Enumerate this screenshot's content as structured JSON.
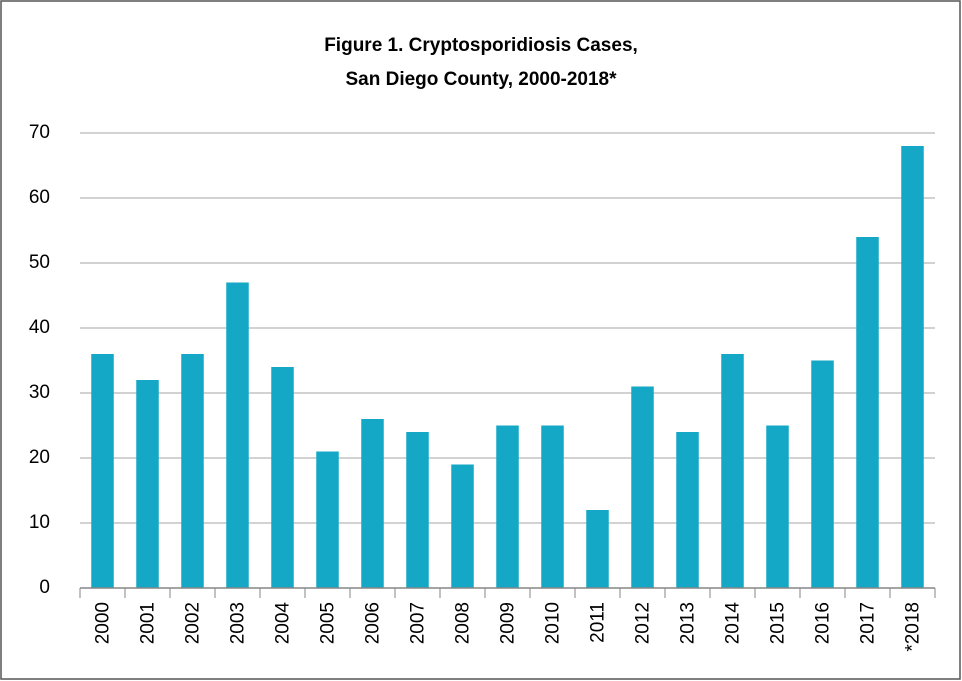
{
  "chart_data": {
    "type": "bar",
    "title": [
      "Figure 1. Cryptosporidiosis Cases,",
      "San Diego County, 2000-2018*"
    ],
    "categories": [
      "2000",
      "2001",
      "2002",
      "2003",
      "2004",
      "2005",
      "2006",
      "2007",
      "2008",
      "2009",
      "2010",
      "2011",
      "2012",
      "2013",
      "2014",
      "2015",
      "2016",
      "2017",
      "*2018"
    ],
    "values": [
      36,
      32,
      36,
      47,
      34,
      21,
      26,
      24,
      19,
      25,
      25,
      12,
      31,
      24,
      36,
      25,
      35,
      54,
      68
    ],
    "color": "#14a8c6",
    "ylim": [
      0,
      70
    ],
    "yticks": [
      0,
      10,
      20,
      30,
      40,
      50,
      60,
      70
    ],
    "grid": true
  }
}
